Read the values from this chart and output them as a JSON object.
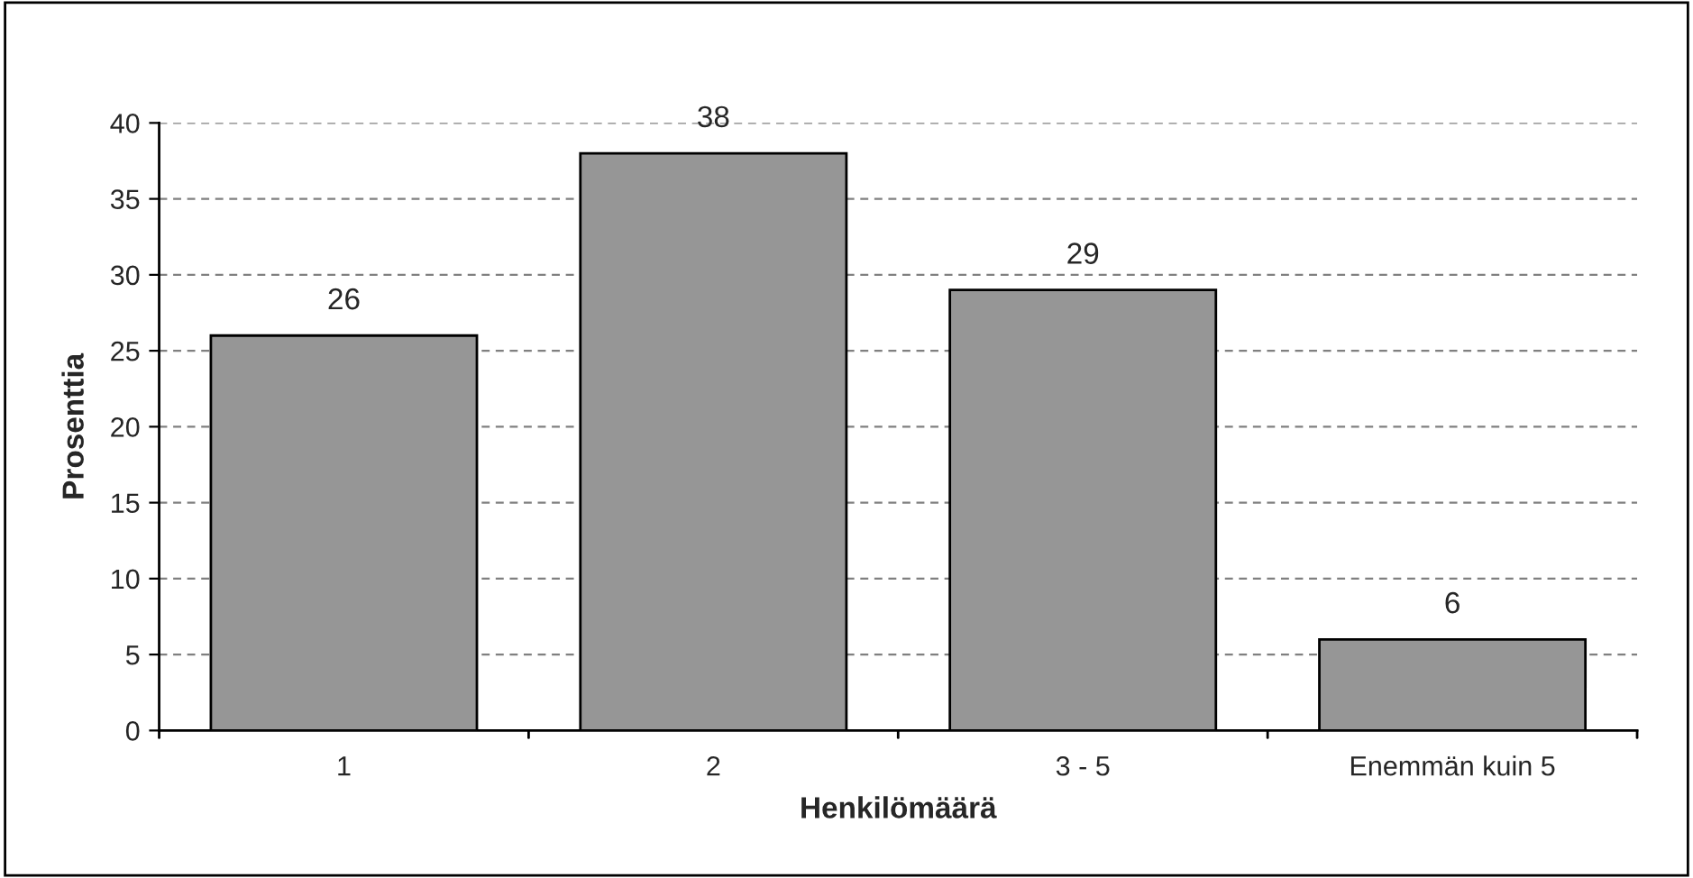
{
  "chart_data": {
    "type": "bar",
    "xlabel": "Henkilömäärä",
    "ylabel": "Prosenttia",
    "categories": [
      "1",
      "2",
      "3 - 5",
      "Enemmän kuin 5"
    ],
    "values": [
      26,
      38,
      29,
      6
    ],
    "color": "#969696",
    "ylim": [
      0,
      40
    ],
    "yticks": [
      0,
      5,
      10,
      15,
      20,
      25,
      30,
      35,
      40
    ],
    "grid": "y",
    "data_labels": true
  }
}
